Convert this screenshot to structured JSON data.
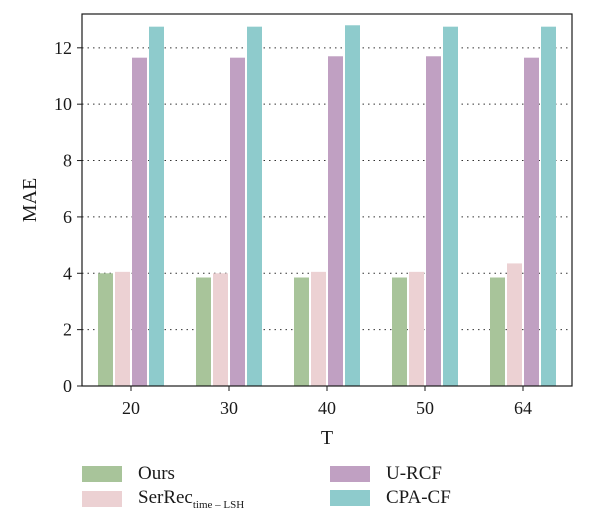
{
  "chart_data": {
    "type": "bar",
    "categories": [
      "20",
      "30",
      "40",
      "50",
      "64"
    ],
    "series": [
      {
        "name": "Ours",
        "color": "#a8c49a",
        "values": [
          4.0,
          3.85,
          3.85,
          3.85,
          3.85
        ]
      },
      {
        "name": "SerRec",
        "name_sub": "time – LSH",
        "color": "#ecd1d3",
        "values": [
          4.05,
          4.0,
          4.05,
          4.05,
          4.35
        ]
      },
      {
        "name": "U-RCF",
        "color": "#c0a0c2",
        "values": [
          11.65,
          11.65,
          11.7,
          11.7,
          11.65
        ]
      },
      {
        "name": "CPA-CF",
        "color": "#8ecbcc",
        "values": [
          12.75,
          12.75,
          12.8,
          12.75,
          12.75
        ]
      }
    ],
    "xlabel": "T",
    "ylabel": "MAE",
    "ylim": [
      0,
      13.2
    ],
    "yticks": [
      "0",
      "2",
      "4",
      "6",
      "8",
      "10",
      "12"
    ],
    "grid": "horizontal-dotted",
    "legend_position": "bottom"
  }
}
